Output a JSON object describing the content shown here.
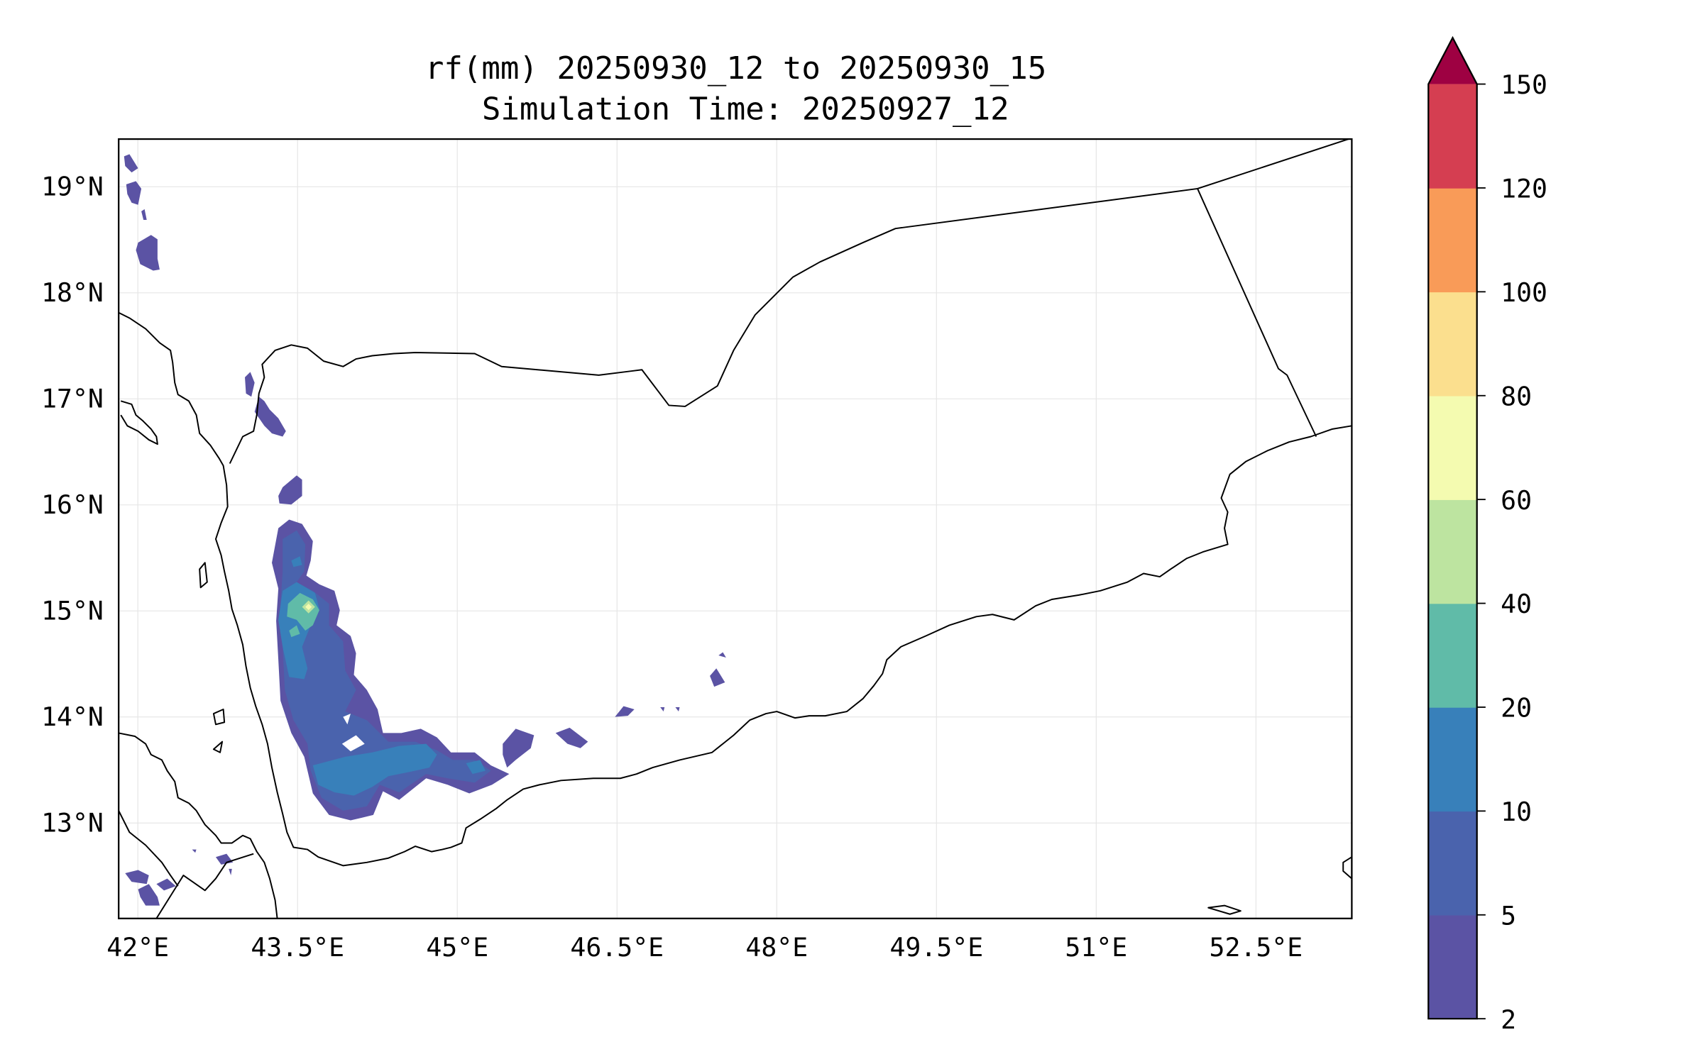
{
  "chart_data": {
    "type": "heatmap",
    "subtype": "filled-contour-map",
    "title": "rf(mm) 20250930_12 to 20250930_15",
    "subtitle": "Simulation Time: 20250927_12",
    "variable": "rf(mm)",
    "region": "Yemen",
    "xlim": [
      41.82,
      53.4
    ],
    "ylim": [
      12.1,
      19.45
    ],
    "grid": true,
    "x_ticks": [
      42,
      43.5,
      45,
      46.5,
      48,
      49.5,
      51,
      52.5
    ],
    "x_tick_labels": [
      "42°E",
      "43.5°E",
      "45°E",
      "46.5°E",
      "48°E",
      "49.5°E",
      "51°E",
      "52.5°E"
    ],
    "y_ticks": [
      13,
      14,
      15,
      16,
      17,
      18,
      19
    ],
    "y_tick_labels": [
      "13°N",
      "14°N",
      "15°N",
      "16°N",
      "17°N",
      "18°N",
      "19°N"
    ],
    "colorbar": {
      "placement": "right",
      "extend": "max",
      "levels": [
        2,
        5,
        10,
        20,
        40,
        60,
        80,
        100,
        120,
        150
      ],
      "tick_labels": [
        "2",
        "5",
        "10",
        "20",
        "40",
        "60",
        "80",
        "100",
        "120",
        "150"
      ],
      "colors": [
        "#5b53a4",
        "#4a63ad",
        "#3880ba",
        "#60bba8",
        "#bde4a0",
        "#f4fbb0",
        "#fbdf8e",
        "#f99b58",
        "#d53e51"
      ],
      "extend_color": "#9e0142"
    },
    "max_value_location": {
      "lon": 43.55,
      "lat": 15.05,
      "range": "60-80"
    }
  }
}
